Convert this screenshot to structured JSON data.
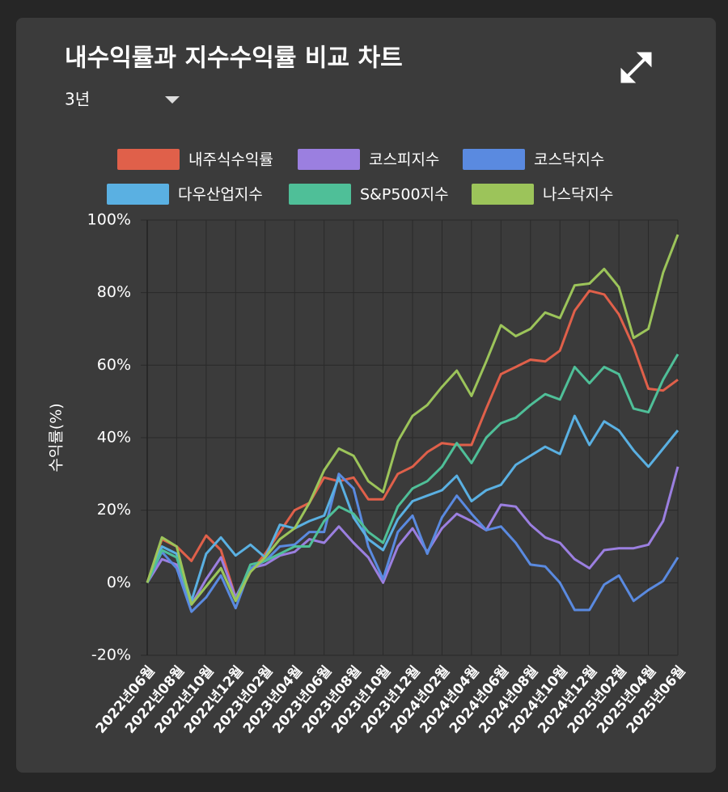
{
  "page": {
    "title": "내수익률과 지수수익률 비교 차트",
    "period": "3년"
  },
  "chart_data": {
    "type": "line",
    "y_label": "수익률(%)",
    "categories": [
      "2022년06월",
      null,
      "2022년08월",
      null,
      "2022년10월",
      null,
      "2022년12월",
      null,
      "2023년02월",
      null,
      "2023년04월",
      null,
      "2023년06월",
      null,
      "2023년08월",
      null,
      "2023년10월",
      null,
      "2023년12월",
      null,
      "2024년02월",
      null,
      "2024년04월",
      null,
      "2024년06월",
      null,
      "2024년08월",
      null,
      "2024년10월",
      null,
      "2024년12월",
      null,
      "2025년02월",
      null,
      "2025년04월",
      null,
      "2025년06월"
    ],
    "ylim": [
      -20,
      100
    ],
    "yticks": [
      {
        "value": -20,
        "label": "-20%"
      },
      {
        "value": 0,
        "label": "0%"
      },
      {
        "value": 20,
        "label": "20%"
      },
      {
        "value": 40,
        "label": "40%"
      },
      {
        "value": 60,
        "label": "60%"
      },
      {
        "value": 80,
        "label": "80%"
      },
      {
        "value": 100,
        "label": "100%"
      }
    ],
    "grid": true,
    "series": [
      {
        "name": "내주식수익률",
        "color": "#e0604a",
        "values": [
          0,
          12,
          10,
          6,
          13,
          9,
          -4,
          3,
          8,
          14,
          20,
          22,
          29,
          28,
          29,
          23,
          23,
          30,
          32,
          36,
          38.5,
          38,
          38,
          48,
          57.5,
          59.5,
          61.5,
          61,
          64,
          75,
          80.5,
          79.5,
          74,
          65,
          53.5,
          53,
          56
        ]
      },
      {
        "name": "코스피지수",
        "color": "#9b7fe0",
        "values": [
          0,
          6.5,
          5,
          -6,
          1,
          7,
          -4,
          4,
          5,
          7.5,
          8.5,
          12,
          11,
          15.5,
          11,
          7,
          0,
          10,
          15,
          8.5,
          15,
          19,
          17,
          14.5,
          21.5,
          21,
          16,
          12.5,
          11,
          6.5,
          4,
          9,
          9.5,
          9.5,
          10.5,
          17,
          32
        ]
      },
      {
        "name": "코스닥지수",
        "color": "#5a8ae0",
        "values": [
          0,
          8.5,
          4,
          -8,
          -4,
          2,
          -7,
          4,
          6,
          10,
          10.5,
          14,
          14,
          30,
          26,
          10,
          1,
          14,
          18.5,
          8,
          18,
          24,
          19,
          14.5,
          15.5,
          11,
          5,
          4.5,
          0,
          -7.5,
          -7.5,
          -0.5,
          2,
          -5,
          -2,
          0.5,
          7
        ]
      },
      {
        "name": "다우산업지수",
        "color": "#5ab0e2",
        "values": [
          0,
          10,
          8,
          -5,
          8,
          12.5,
          7.5,
          10.5,
          7,
          16,
          15,
          17,
          18.5,
          29,
          18,
          12,
          9,
          17.5,
          22.5,
          24,
          25.5,
          29.5,
          22.5,
          25.5,
          27,
          32.5,
          35,
          37.5,
          35.5,
          46,
          38,
          44.5,
          42,
          36.5,
          32,
          37,
          42
        ]
      },
      {
        "name": "S&P500지수",
        "color": "#4fbf98",
        "values": [
          0,
          9,
          7,
          -6,
          -1,
          4,
          -5,
          5,
          6,
          8,
          10,
          10,
          17,
          21,
          19,
          14,
          11,
          21,
          26,
          28,
          32,
          38.5,
          33,
          40,
          44,
          45.5,
          49,
          52,
          50.5,
          59.5,
          55,
          59.5,
          57.5,
          48,
          47,
          56,
          63
        ]
      },
      {
        "name": "나스닥지수",
        "color": "#9cc45a",
        "values": [
          0,
          12.5,
          10,
          -6,
          -1,
          4,
          -5,
          3,
          7,
          12,
          15,
          22,
          31,
          37,
          35,
          28,
          25,
          39,
          46,
          49,
          54,
          58.5,
          51.5,
          61,
          71,
          68,
          70,
          74.5,
          73,
          82,
          82.5,
          86.5,
          81.5,
          67.5,
          70,
          85.5,
          96
        ]
      }
    ]
  }
}
